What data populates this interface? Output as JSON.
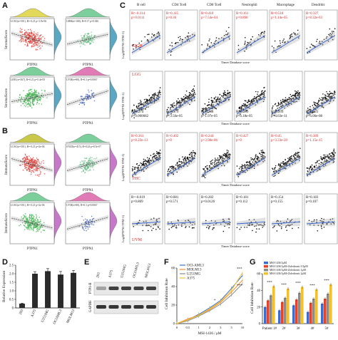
{
  "panel_labels": {
    "A": "A",
    "B": "B",
    "C": "C",
    "D": "D",
    "E": "E",
    "F": "F",
    "G": "G"
  },
  "A": {
    "top_left": {
      "stat": "LUSC(n=501), R=-0.21 p=1.9e-06",
      "x": "PTPN1",
      "y": "StromalScore"
    },
    "top_right": {
      "stat": "GBM(n=168), R=0.17 p=0.026",
      "x": "PTPN1"
    },
    "bottom_left": {
      "stat": "LIHC(n=367), R=0.21 p=5.4e-05",
      "x": "PTPN1",
      "y": "StromalScore"
    },
    "bottom_right": {
      "stat": "UVM(n=80), R=0.3 p=0.0067",
      "x": "PTPN1"
    }
  },
  "B": {
    "top_left": {
      "stat": "LUSC(n=501), R=-0.21 p=2e-06",
      "x": "PTPN1",
      "y": "ImmuneScore"
    },
    "top_right": {
      "stat": "STAD(n=415), R=0.24 p=8.5e-07",
      "x": "PTPN1"
    },
    "bottom_left": {
      "stat": "LUSC(n=501), R=-0.21 p=2e-06",
      "x": "PTPN1",
      "y": "ImmuneScore"
    },
    "bottom_right": {
      "stat": "UVM(n=80), R=0.3 p=0.0067",
      "x": "PTPN1"
    }
  },
  "C": {
    "columns": [
      "B cell",
      "CD4 Tcell",
      "CD8 Tcell",
      "Neutrophil",
      "Macrophage",
      "Dendritic"
    ],
    "x_label": "Timer Database score",
    "y_label": "Log2(PTPN1 TPM+1)",
    "rows": [
      {
        "cancer": "KICH",
        "stats": [
          [
            "R=-0.314",
            "p=0.0111"
          ],
          [
            "R=0.115",
            "p=0.36"
          ],
          [
            "R=0.410",
            "p=7.54e-04"
          ],
          [
            "R=0.161",
            "p=0.898"
          ],
          [
            "R=0.518",
            "p=1.14e-05"
          ],
          [
            "R=0.327",
            "p=8.32e-03"
          ]
        ]
      },
      {
        "cancer": "LGG",
        "stats": [
          [
            "R=0.274",
            "p=0.000682"
          ],
          [
            "R=0.179",
            "p=3.56e-05"
          ],
          [
            "R=0.238",
            "p=1.97e-05"
          ],
          [
            "R=0.289",
            "p=6.18e-05"
          ],
          [
            "R=0.339",
            "p=4.63e-11"
          ],
          [
            "R=0.231",
            "p=6.06e-08"
          ]
        ]
      },
      {
        "cancer": "THC",
        "stats": [
          [
            "R=0.361",
            "p=8.22e-13"
          ],
          [
            "R=0.402",
            "p=0"
          ],
          [
            "R=0.244",
            "p=3.98e-06"
          ],
          [
            "R=0.427",
            "p=0"
          ],
          [
            "R=0.45",
            "p=3.33e-20"
          ],
          [
            "R=0.389",
            "p=1.15e-15"
          ]
        ]
      },
      {
        "cancer": "UVM",
        "stats": [
          [
            "R=-0.019",
            "p=0.869"
          ],
          [
            "R=0.081",
            "p=0.571"
          ],
          [
            "R=0.282",
            "p=0.0126"
          ],
          [
            "R=0.181",
            "p=0.112"
          ],
          [
            "R=0.154",
            "p=0.155"
          ],
          [
            "R=0.183",
            "p=0.107"
          ]
        ]
      }
    ]
  },
  "D": {
    "chart_data": {
      "type": "bar",
      "categories": [
        "293",
        "A375",
        "U251MG",
        "OCIAML3",
        "MOLM13"
      ],
      "values": [
        0.25,
        2.0,
        2.15,
        1.95,
        2.05
      ],
      "errors": [
        0.03,
        0.12,
        0.15,
        0.18,
        0.14
      ],
      "ylabel": "Relative Expression",
      "ylim": [
        0,
        2.5
      ],
      "yticks": [
        "0",
        "0.5",
        "1.0",
        "1.5",
        "2.0",
        "2.5"
      ]
    }
  },
  "E": {
    "lanes": [
      "293",
      "A375",
      "U251MG",
      "OCIAML3",
      "MOLM13"
    ],
    "rows": [
      "PTP1-B",
      "GAPDH"
    ],
    "left_mark": "kDa"
  },
  "F": {
    "chart_data": {
      "type": "line",
      "x": [
        "0",
        "0.5",
        "1",
        "2",
        "3",
        "5",
        "10"
      ],
      "series": [
        {
          "name": "OCI-AML3",
          "color": "#3a6fcf",
          "values": [
            0,
            4,
            10,
            17,
            25,
            38,
            52
          ]
        },
        {
          "name": "MOLM13",
          "color": "#f28c28",
          "values": [
            0,
            5,
            9,
            15,
            23,
            34,
            47
          ]
        },
        {
          "name": "U251MG",
          "color": "#8c8c8c",
          "values": [
            0,
            3,
            8,
            14,
            21,
            31,
            43
          ]
        },
        {
          "name": "A375",
          "color": "#f2c12e",
          "values": [
            0,
            4,
            9,
            16,
            24,
            36,
            55
          ]
        }
      ],
      "xlabel": "MSI-1436 / μM",
      "ylabel": "Cell Inhibition Rate",
      "ylim": [
        0,
        60
      ],
      "yticks": [
        "0",
        "20",
        "40",
        "60"
      ],
      "annotations": [
        "***",
        "***",
        "*"
      ]
    }
  },
  "G": {
    "chart_data": {
      "type": "bar",
      "categories": [
        "Patient 1#",
        "2#",
        "3#",
        "4#",
        "5#"
      ],
      "series": [
        {
          "name": "MSI-1436 5μM",
          "color": "#3a6fcf"
        },
        {
          "name": "MSI-1436 5μM+Zoledronic 0.5μM",
          "color": "#e2452a"
        },
        {
          "name": "MSI-1436 5μM+Zoledronic 1μM",
          "color": "#8c8c8c"
        },
        {
          "name": "MSI-1436 5μM+Zoledronic 2μM",
          "color": "#f2c12e"
        }
      ],
      "values": [
        [
          20,
          28,
          34,
          45
        ],
        [
          16,
          26,
          31,
          42
        ],
        [
          22,
          29,
          37,
          44
        ],
        [
          14,
          25,
          30,
          41
        ],
        [
          24,
          30,
          36,
          47
        ]
      ],
      "ylabel": "Cell Inhibition Rate",
      "ylim": [
        0,
        60
      ],
      "yticks": [
        "0",
        "20",
        "40",
        "60"
      ],
      "stars": "***"
    }
  }
}
